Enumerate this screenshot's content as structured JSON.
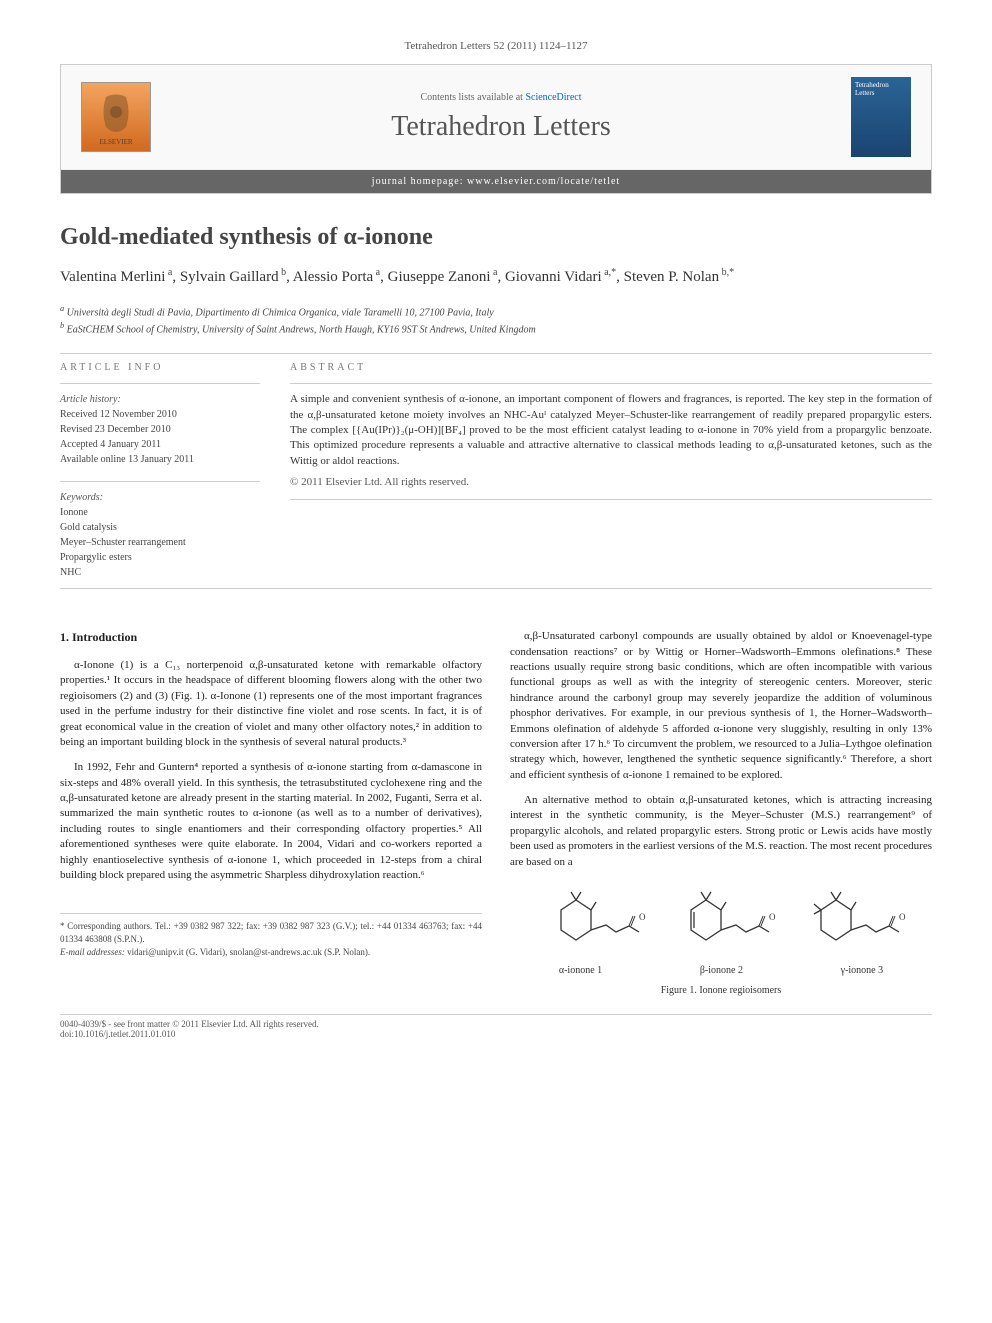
{
  "journal_ref": "Tetrahedron Letters 52 (2011) 1124–1127",
  "header": {
    "contents_text": "Contents lists available at ",
    "sciencedirect": "ScienceDirect",
    "journal_title": "Tetrahedron Letters",
    "homepage_label": "journal homepage: ",
    "homepage_url": "www.elsevier.com/locate/tetlet",
    "elsevier_label": "ELSEVIER",
    "cover_text": "Tetrahedron Letters"
  },
  "article_title": "Gold-mediated synthesis of α-ionone",
  "authors_html": "Valentina Merlini<sup> a</sup>, Sylvain Gaillard<sup> b</sup>, Alessio Porta<sup> a</sup>, Giuseppe Zanoni<sup> a</sup>, Giovanni Vidari<sup> a,*</sup>, Steven P. Nolan<sup> b,*</sup>",
  "affiliations": {
    "a": "Università degli Studi di Pavia, Dipartimento di Chimica Organica, viale Taramelli 10, 27100 Pavia, Italy",
    "b": "EaStCHEM School of Chemistry, University of Saint Andrews, North Haugh, KY16 9ST St Andrews, United Kingdom"
  },
  "info": {
    "section_label": "ARTICLE INFO",
    "history_label": "Article history:",
    "received": "Received 12 November 2010",
    "revised": "Revised 23 December 2010",
    "accepted": "Accepted 4 January 2011",
    "online": "Available online 13 January 2011",
    "keywords_label": "Keywords:",
    "keywords": [
      "Ionone",
      "Gold catalysis",
      "Meyer–Schuster rearrangement",
      "Propargylic esters",
      "NHC"
    ]
  },
  "abstract": {
    "section_label": "ABSTRACT",
    "text": "A simple and convenient synthesis of α-ionone, an important component of flowers and fragrances, is reported. The key step in the formation of the α,β-unsaturated ketone moiety involves an NHC-Auᴵ catalyzed Meyer–Schuster-like rearrangement of readily prepared propargylic esters. The complex [{Au(IPr)}₂(μ-OH)][BF₄] proved to be the most efficient catalyst leading to α-ionone in 70% yield from a propargylic benzoate. This optimized procedure represents a valuable and attractive alternative to classical methods leading to α,β-unsaturated ketones, such as the Wittig or aldol reactions.",
    "copyright": "© 2011 Elsevier Ltd. All rights reserved."
  },
  "body": {
    "section1_title": "1. Introduction",
    "p1": "α-Ionone (1) is a C₁₃ norterpenoid α,β-unsaturated ketone with remarkable olfactory properties.¹ It occurs in the headspace of different blooming flowers along with the other two regioisomers (2) and (3) (Fig. 1). α-Ionone (1) represents one of the most important fragrances used in the perfume industry for their distinctive fine violet and rose scents. In fact, it is of great economical value in the creation of violet and many other olfactory notes,² in addition to being an important building block in the synthesis of several natural products.³",
    "p2": "In 1992, Fehr and Guntern⁴ reported a synthesis of α-ionone starting from α-damascone in six-steps and 48% overall yield. In this synthesis, the tetrasubstituted cyclohexene ring and the α,β-unsaturated ketone are already present in the starting material. In 2002, Fuganti, Serra et al. summarized the main synthetic routes to α-ionone (as well as to a number of derivatives), including routes to single enantiomers and their corresponding olfactory properties.⁵ All aforementioned syntheses were quite elaborate. In 2004, Vidari and co-workers reported a highly enantioselective synthesis of α-ionone 1, which proceeded in 12-steps from a chiral building block prepared using the asymmetric Sharpless dihydroxylation reaction.⁶",
    "p3": "α,β-Unsaturated carbonyl compounds are usually obtained by aldol or Knoevenagel-type condensation reactions⁷ or by Wittig or Horner–Wadsworth–Emmons olefinations.⁸ These reactions usually require strong basic conditions, which are often incompatible with various functional groups as well as with the integrity of stereogenic centers. Moreover, steric hindrance around the carbonyl group may severely jeopardize the addition of voluminous phosphor derivatives. For example, in our previous synthesis of 1, the Horner–Wadsworth–Emmons olefination of aldehyde 5 afforded α-ionone very sluggishly, resulting in only 13% conversion after 17 h.⁶ To circumvent the problem, we resourced to a Julia–Lythgoe olefination strategy which, however, lengthened the synthetic sequence significantly.⁶ Therefore, a short and efficient synthesis of α-ionone 1 remained to be explored.",
    "p4": "An alternative method to obtain α,β-unsaturated ketones, which is attracting increasing interest in the synthetic community, is the Meyer–Schuster (M.S.) rearrangement⁹ of propargylic alcohols, and related propargylic esters. Strong protic or Lewis acids have mostly been used as promoters in the earliest versions of the M.S. reaction. The most recent procedures are based on a"
  },
  "figure1": {
    "labels": [
      "α-ionone 1",
      "β-ionone 2",
      "γ-ionone 3"
    ],
    "caption": "Figure 1. Ionone regioisomers",
    "stroke_color": "#333333"
  },
  "footnote": {
    "corr_label": "* Corresponding authors. Tel.: +39 0382 987 322; fax: +39 0382 987 323 (G.V.); tel.: +44 01334 463763; fax: +44 01334 463808 (S.P.N.).",
    "email_label": "E-mail addresses:",
    "email1": "vidari@unipv.it (G. Vidari),",
    "email2": "snolan@st-andrews.ac.uk (S.P. Nolan)."
  },
  "footer": {
    "left": "0040-4039/$ - see front matter © 2011 Elsevier Ltd. All rights reserved.",
    "doi": "doi:10.1016/j.tetlet.2011.01.010"
  },
  "colors": {
    "link": "#0066cc",
    "text": "#333333",
    "muted": "#666666"
  }
}
